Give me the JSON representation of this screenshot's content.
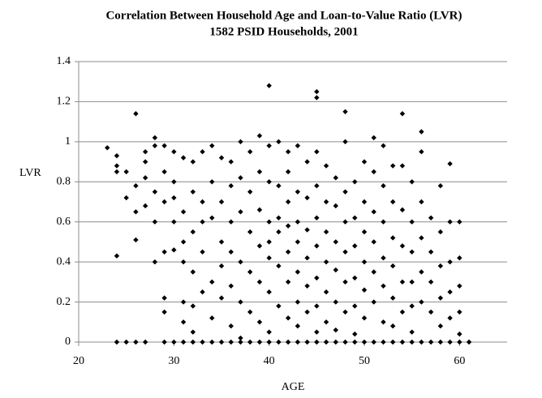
{
  "chart_data": {
    "type": "scatter",
    "title": "Correlation Between Household Age and Loan-to-Value Ratio (LVR)",
    "subtitle": "1582 PSID Households, 2001",
    "x_label": "AGE",
    "y_label": "LVR",
    "xlim": [
      20,
      65
    ],
    "xticks": [
      20,
      30,
      40,
      50,
      60
    ],
    "ylim": [
      0,
      1.4
    ],
    "yticks": [
      0,
      0.2,
      0.4,
      0.6,
      0.8,
      1,
      1.2,
      1.4
    ],
    "grid": true,
    "color": "#000000",
    "x": [
      23,
      24,
      24,
      24,
      24,
      24,
      25,
      25,
      25,
      26,
      26,
      26,
      26,
      26,
      27,
      27,
      27,
      27,
      27,
      28,
      28,
      28,
      28,
      28,
      29,
      29,
      29,
      29,
      29,
      29,
      29,
      30,
      30,
      30,
      30,
      30,
      30,
      31,
      31,
      31,
      31,
      31,
      31,
      31,
      32,
      32,
      32,
      32,
      32,
      32,
      32,
      33,
      33,
      33,
      33,
      33,
      33,
      34,
      34,
      34,
      34,
      34,
      34,
      35,
      35,
      35,
      35,
      35,
      35,
      36,
      36,
      36,
      36,
      36,
      36,
      36,
      37,
      37,
      37,
      37,
      37,
      37,
      37,
      38,
      38,
      38,
      38,
      38,
      38,
      39,
      39,
      39,
      39,
      39,
      39,
      39,
      40,
      40,
      40,
      40,
      40,
      40,
      40,
      40,
      40,
      41,
      41,
      41,
      41,
      41,
      41,
      41,
      42,
      42,
      42,
      42,
      42,
      42,
      42,
      42,
      43,
      43,
      43,
      43,
      43,
      43,
      43,
      43,
      44,
      44,
      44,
      44,
      44,
      44,
      44,
      45,
      45,
      45,
      45,
      45,
      45,
      45,
      45,
      45,
      45,
      46,
      46,
      46,
      46,
      46,
      46,
      46,
      47,
      47,
      47,
      47,
      47,
      47,
      47,
      48,
      48,
      48,
      48,
      48,
      48,
      48,
      48,
      49,
      49,
      49,
      49,
      49,
      49,
      49,
      50,
      50,
      50,
      50,
      50,
      50,
      50,
      51,
      51,
      51,
      51,
      51,
      51,
      51,
      52,
      52,
      52,
      52,
      52,
      52,
      52,
      53,
      53,
      53,
      53,
      53,
      53,
      53,
      54,
      54,
      54,
      54,
      54,
      54,
      54,
      55,
      55,
      55,
      55,
      55,
      55,
      55,
      56,
      56,
      56,
      56,
      56,
      56,
      56,
      57,
      57,
      57,
      57,
      57,
      58,
      58,
      58,
      58,
      58,
      58,
      59,
      59,
      59,
      59,
      59,
      59,
      60,
      60,
      60,
      60,
      60,
      60,
      61
    ],
    "values": [
      0.97,
      0.43,
      0.93,
      0.88,
      0.85,
      0,
      0.72,
      0.85,
      0,
      1.14,
      0.51,
      0.78,
      0.65,
      0,
      0.95,
      0.82,
      0.68,
      0.9,
      0,
      1.02,
      0.4,
      0.6,
      0.75,
      0.98,
      0.98,
      0.22,
      0.15,
      0.45,
      0.7,
      0.85,
      0,
      0.46,
      0.95,
      0.8,
      0.6,
      0.72,
      0,
      0.1,
      0.2,
      0.92,
      0.65,
      0.5,
      0.4,
      0,
      0.05,
      0.18,
      0.9,
      0.75,
      0.55,
      0.35,
      0,
      0.25,
      0.95,
      0.7,
      0.6,
      0.45,
      0,
      0.98,
      0.8,
      0.62,
      0.3,
      0.12,
      0,
      0.92,
      0.7,
      0.5,
      0.38,
      0.22,
      0,
      0.9,
      0.78,
      0.6,
      0.45,
      0.28,
      0.08,
      0,
      1.0,
      0.82,
      0.65,
      0.4,
      0.2,
      0.02,
      0,
      0.95,
      0.75,
      0.55,
      0.35,
      0.15,
      0,
      1.03,
      0.85,
      0.66,
      0.48,
      0.3,
      0.1,
      0,
      1.28,
      0.98,
      0.8,
      0.6,
      0.5,
      0.42,
      0.25,
      0.05,
      0,
      1.0,
      0.78,
      0.62,
      0.55,
      0.38,
      0.18,
      0,
      0.95,
      0.85,
      0.7,
      0.58,
      0.45,
      0.3,
      0.12,
      0,
      0.98,
      0.75,
      0.6,
      0.5,
      0.35,
      0.2,
      0.08,
      0,
      0.9,
      0.72,
      0.56,
      0.42,
      0.28,
      0.15,
      0,
      1.25,
      1.22,
      0.95,
      0.78,
      0.62,
      0.48,
      0.32,
      0.18,
      0.05,
      0,
      0.88,
      0.7,
      0.55,
      0.4,
      0.25,
      0.1,
      0,
      0.82,
      0.68,
      0.5,
      0.36,
      0.2,
      0.06,
      0,
      1.15,
      1.0,
      0.75,
      0.6,
      0.45,
      0.3,
      0.15,
      0,
      0.8,
      0.62,
      0.48,
      0.32,
      0.18,
      0.04,
      0,
      0.9,
      0.7,
      0.55,
      0.4,
      0.26,
      0.12,
      0,
      1.02,
      0.85,
      0.65,
      0.5,
      0.35,
      0.2,
      0,
      0.98,
      0.78,
      0.6,
      0.42,
      0.28,
      0.1,
      0,
      0.88,
      0.7,
      0.52,
      0.38,
      0.22,
      0.08,
      0,
      1.14,
      0.88,
      0.66,
      0.48,
      0.3,
      0.15,
      0,
      0.8,
      0.6,
      0.45,
      0.3,
      0.18,
      0.05,
      0,
      1.05,
      0.95,
      0.7,
      0.52,
      0.35,
      0.2,
      0,
      0.62,
      0.45,
      0.3,
      0.15,
      0,
      0.78,
      0.55,
      0.38,
      0.22,
      0.08,
      0,
      0.89,
      0.6,
      0.4,
      0.25,
      0.12,
      0,
      0.6,
      0.42,
      0.28,
      0.15,
      0.04,
      0,
      0
    ]
  }
}
